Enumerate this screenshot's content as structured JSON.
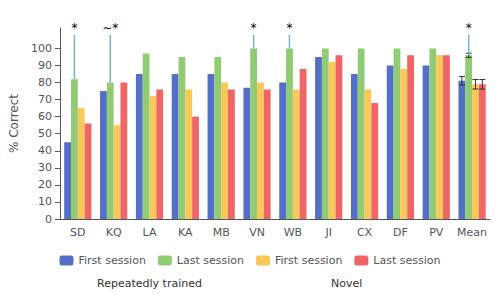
{
  "chart_data": {
    "type": "bar",
    "categories": [
      "SD",
      "KQ",
      "LA",
      "KA",
      "MB",
      "VN",
      "WB",
      "JI",
      "CX",
      "DF",
      "PV",
      "Mean"
    ],
    "series": [
      {
        "name": "First session",
        "values": [
          45,
          75,
          85,
          85,
          85,
          77,
          80,
          95,
          85,
          90,
          90,
          81
        ],
        "errors": [
          0,
          0,
          0,
          0,
          0,
          0,
          0,
          0,
          0,
          0,
          0,
          2.5
        ]
      },
      {
        "name": "Last session",
        "values": [
          82,
          80,
          97,
          95,
          95,
          100,
          100,
          100,
          100,
          100,
          100,
          96
        ],
        "errors": [
          0,
          0,
          0,
          0,
          0,
          0,
          0,
          0,
          0,
          0,
          0,
          1.2
        ]
      },
      {
        "name": "First session",
        "values": [
          65,
          55,
          72,
          76,
          80,
          80,
          76,
          92,
          76,
          88,
          96,
          79
        ],
        "errors": [
          0,
          0,
          0,
          0,
          0,
          0,
          0,
          0,
          0,
          0,
          0,
          2.8
        ]
      },
      {
        "name": "Last session",
        "values": [
          56,
          80,
          76,
          60,
          76,
          76,
          88,
          96,
          68,
          96,
          96,
          79
        ],
        "errors": [
          0,
          0,
          0,
          0,
          0,
          0,
          0,
          0,
          0,
          0,
          0,
          2.8
        ]
      }
    ],
    "ylabel": "% Correct",
    "ylim": [
      0,
      112
    ],
    "yticks": [
      0,
      10,
      20,
      30,
      40,
      50,
      60,
      70,
      80,
      90,
      100
    ],
    "grid": false,
    "legend": "bottom",
    "significance": {
      "color": "#7aaed4",
      "to": 108,
      "marks": [
        {
          "category": "SD",
          "label": "*"
        },
        {
          "category": "KQ",
          "label": "∼*"
        },
        {
          "category": "VN",
          "label": "*"
        },
        {
          "category": "WB",
          "label": "*"
        },
        {
          "category": "Mean",
          "label": "*"
        }
      ]
    },
    "annotations": [
      {
        "text": "Repeatedly trained",
        "from": "SD",
        "to": "MB"
      },
      {
        "text": "Novel",
        "from": "VN",
        "to": "PV"
      }
    ]
  }
}
